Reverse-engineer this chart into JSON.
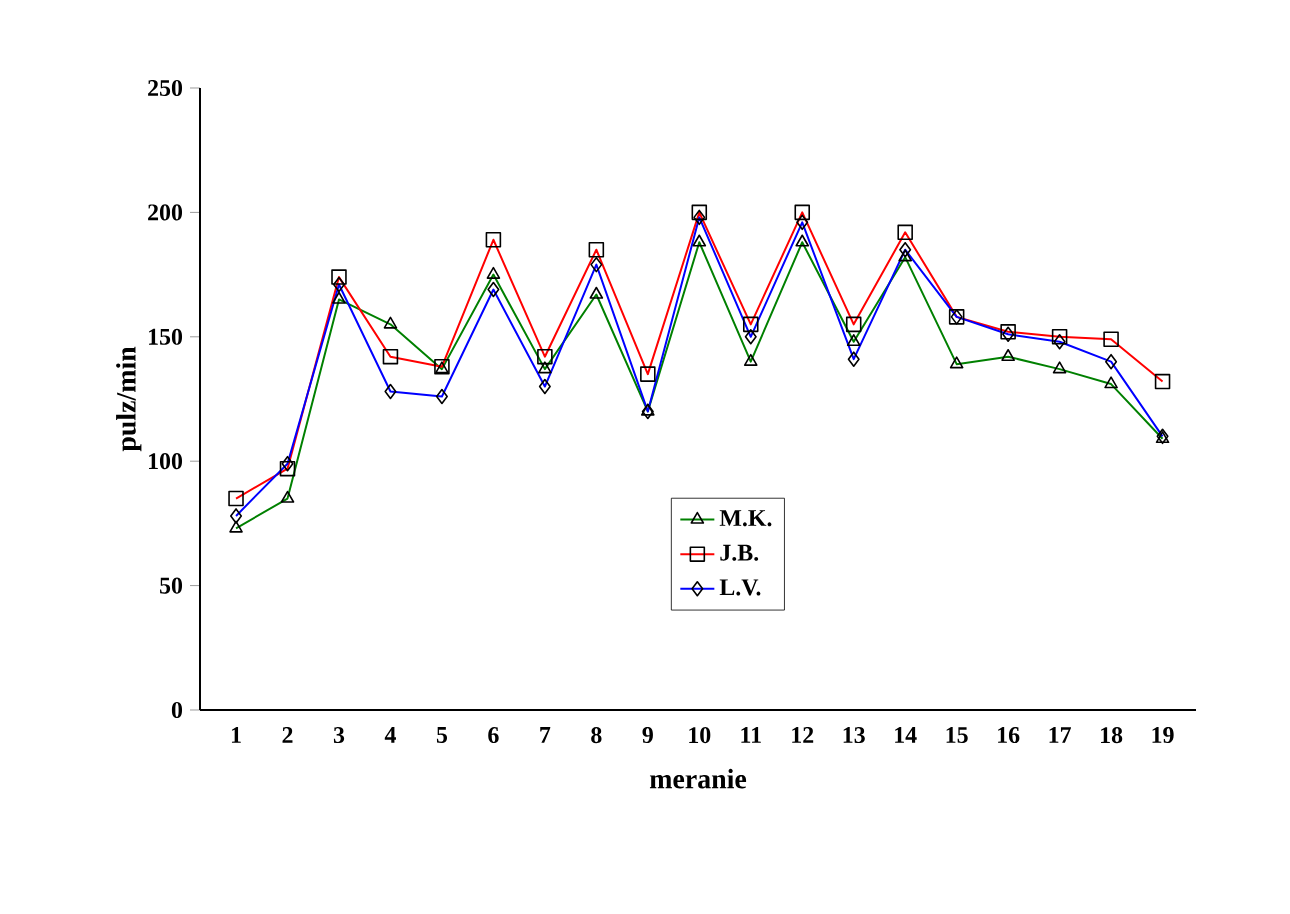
{
  "chart_data": {
    "type": "line",
    "xlabel": "meranie",
    "ylabel": "pulz/min",
    "categories": [
      "1",
      "2",
      "3",
      "4",
      "5",
      "6",
      "7",
      "8",
      "9",
      "10",
      "11",
      "12",
      "13",
      "14",
      "15",
      "16",
      "17",
      "18",
      "19"
    ],
    "series": [
      {
        "name": "M.K.",
        "color": "#008000",
        "marker": "triangle",
        "values": [
          73,
          85,
          165,
          155,
          137,
          175,
          137,
          167,
          120,
          188,
          140,
          188,
          148,
          182,
          139,
          142,
          137,
          131,
          109
        ]
      },
      {
        "name": "J.B.",
        "color": "#ff0000",
        "marker": "square",
        "values": [
          85,
          97,
          174,
          142,
          138,
          189,
          142,
          185,
          135,
          200,
          155,
          200,
          155,
          192,
          158,
          152,
          150,
          149,
          132
        ]
      },
      {
        "name": "L.V.",
        "color": "#0000ff",
        "marker": "diamond",
        "values": [
          78,
          99,
          171,
          128,
          126,
          169,
          130,
          179,
          120,
          198,
          150,
          196,
          141,
          185,
          158,
          151,
          148,
          140,
          110
        ]
      }
    ],
    "ylim": [
      0,
      250
    ],
    "yticks": [
      0,
      50,
      100,
      150,
      200,
      250
    ],
    "grid": false,
    "legend": "bottom",
    "line_style": "solid"
  }
}
